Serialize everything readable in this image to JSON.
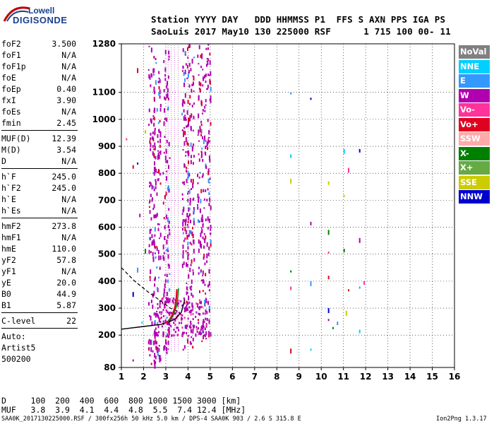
{
  "logo": {
    "top": "Lowell",
    "bottom": "DIGISONDE"
  },
  "header": {
    "line1": "Station YYYY DAY   DDD HHMMSS P1  FFS S AXN PPS IGA PS",
    "line2": "SaoLuis 2017 May10 130 225000 RSF      1 715 100 00- 11"
  },
  "params": {
    "group1": [
      {
        "k": "foF2",
        "v": "3.500"
      },
      {
        "k": "foF1",
        "v": "N/A"
      },
      {
        "k": "foF1p",
        "v": "N/A"
      },
      {
        "k": "foE",
        "v": "N/A"
      },
      {
        "k": "foEp",
        "v": "0.40"
      },
      {
        "k": "fxI",
        "v": "3.90"
      },
      {
        "k": "foEs",
        "v": "N/A"
      },
      {
        "k": "fmin",
        "v": "2.45"
      }
    ],
    "group2": [
      {
        "k": "MUF(D)",
        "v": "12.39"
      },
      {
        "k": "M(D)",
        "v": "3.54"
      },
      {
        "k": "D",
        "v": "N/A"
      }
    ],
    "group3": [
      {
        "k": "h`F",
        "v": "245.0"
      },
      {
        "k": "h`F2",
        "v": "245.0"
      },
      {
        "k": "h`E",
        "v": "N/A"
      },
      {
        "k": "h`Es",
        "v": "N/A"
      }
    ],
    "group4": [
      {
        "k": "hmF2",
        "v": "273.8"
      },
      {
        "k": "hmF1",
        "v": "N/A"
      },
      {
        "k": "hmE",
        "v": "110.0"
      },
      {
        "k": "yF2",
        "v": "57.8"
      },
      {
        "k": "yF1",
        "v": "N/A"
      },
      {
        "k": "yE",
        "v": "20.0"
      },
      {
        "k": "B0",
        "v": "44.9"
      },
      {
        "k": "B1",
        "v": "5.87"
      }
    ],
    "clevel": {
      "k": "C-level",
      "v": "22"
    },
    "autoscaling": [
      "Auto:",
      "Artist5",
      "500200"
    ]
  },
  "legend": [
    {
      "label": "NoVal",
      "color": "#808080"
    },
    {
      "label": "NNE",
      "color": "#00d0ff"
    },
    {
      "label": "E",
      "color": "#3399ff"
    },
    {
      "label": "W",
      "color": "#b000b0"
    },
    {
      "label": "Vo-",
      "color": "#ff3399"
    },
    {
      "label": "Vo+",
      "color": "#e00020"
    },
    {
      "label": "SSW",
      "color": "#ffaaaa"
    },
    {
      "label": "X-",
      "color": "#008000"
    },
    {
      "label": "X+",
      "color": "#66aa44"
    },
    {
      "label": "SSE",
      "color": "#cccc00"
    },
    {
      "label": "NNW",
      "color": "#0000cc"
    }
  ],
  "bottom": {
    "d_row": "D     100  200  400  600  800 1000 1500 3000 [km]",
    "muf_row": "MUF   3.8  3.9  4.1  4.4  4.8  5.5  7.4 12.4 [MHz]",
    "footer_left": "SAA0K_2017130225000.RSF / 300fx256h 50 kHz 5.0 km / DPS-4 SAA0K 903 / 2.6 S 315.8 E",
    "footer_right": "Ion2Png 1.3.17"
  },
  "chart_data": {
    "type": "scatter",
    "title": "",
    "xlabel": "",
    "ylabel": "",
    "xlim": [
      1,
      16
    ],
    "ylim": [
      80,
      1280
    ],
    "x_ticks": [
      1,
      2,
      3,
      4,
      5,
      6,
      7,
      8,
      9,
      10,
      11,
      12,
      13,
      14,
      15,
      16
    ],
    "y_ticks": [
      80,
      200,
      300,
      400,
      500,
      600,
      700,
      800,
      900,
      1000,
      1100,
      1280
    ],
    "grid": true,
    "trace_o_mode": [
      [
        3.0,
        245
      ],
      [
        3.15,
        255
      ],
      [
        3.3,
        275
      ],
      [
        3.42,
        305
      ],
      [
        3.48,
        340
      ],
      [
        3.5,
        370
      ]
    ],
    "trace_x_mode": [
      [
        1.0,
        222
      ],
      [
        2.0,
        232
      ],
      [
        2.8,
        240
      ],
      [
        3.4,
        258
      ],
      [
        3.7,
        285
      ],
      [
        3.85,
        330
      ]
    ],
    "profile_dashed": [
      [
        1.0,
        450
      ],
      [
        1.6,
        400
      ],
      [
        2.2,
        360
      ],
      [
        2.8,
        325
      ],
      [
        3.2,
        300
      ],
      [
        3.5,
        290
      ]
    ],
    "echo_columns": [
      {
        "x": 2.35,
        "ymin": 90,
        "ymax": 1280,
        "color": "#b000b0"
      },
      {
        "x": 2.6,
        "ymin": 100,
        "ymax": 1250,
        "color": "#b000b0"
      },
      {
        "x": 3.0,
        "ymin": 120,
        "ymax": 1280,
        "color": "#b000b0"
      },
      {
        "x": 3.85,
        "ymin": 140,
        "ymax": 1280,
        "color": "#b000b0"
      },
      {
        "x": 4.1,
        "ymin": 150,
        "ymax": 1280,
        "color": "#b000b0"
      },
      {
        "x": 4.55,
        "ymin": 180,
        "ymax": 1280,
        "color": "#b000b0"
      },
      {
        "x": 4.85,
        "ymin": 190,
        "ymax": 1280,
        "color": "#b000b0"
      }
    ]
  }
}
